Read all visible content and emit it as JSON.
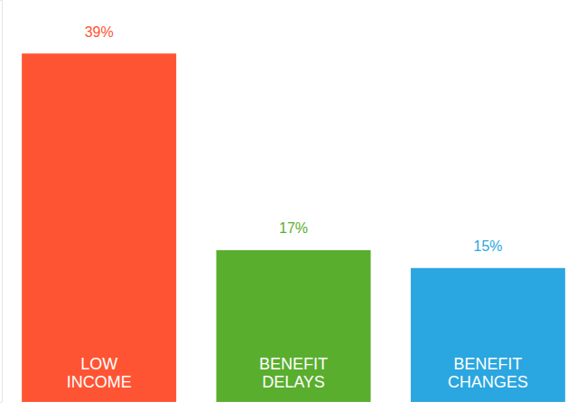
{
  "chart_data": {
    "type": "bar",
    "categories": [
      "LOW INCOME",
      "BENEFIT DELAYS",
      "BENEFIT CHANGES"
    ],
    "values": [
      39,
      17,
      15
    ],
    "value_labels": [
      "39%",
      "17%",
      "15%"
    ],
    "colors": [
      "#ff5433",
      "#5aae2e",
      "#2aa6e0"
    ],
    "ylim": [
      0,
      45
    ],
    "yticks": [
      0,
      45
    ],
    "grid": false,
    "data_labels": true,
    "tick_labels": false
  }
}
